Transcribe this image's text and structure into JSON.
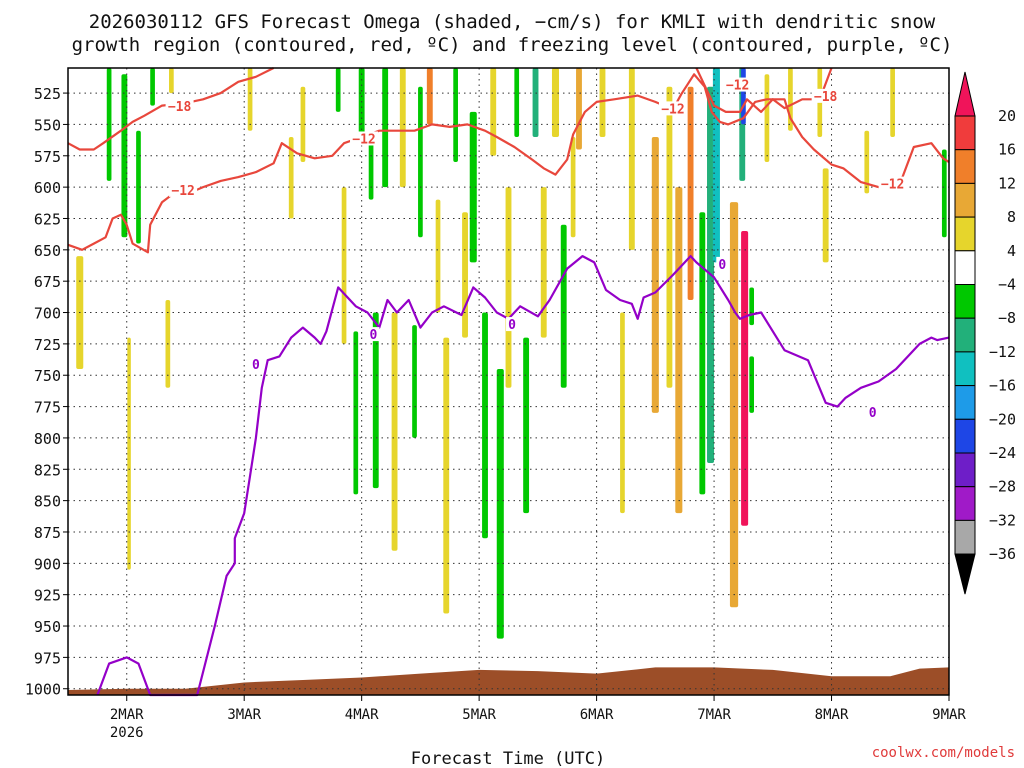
{
  "chart_data": {
    "type": "heatmap",
    "title": "2026030112 GFS Forecast Omega (shaded, −cm/s) for KMLI with dendritic snow growth region (contoured, red, ºC) and freezing level (contoured, purple, ºC)",
    "title_lines": [
      "2026030112 GFS Forecast Omega (shaded, −cm/s) for KMLI with dendritic snow",
      "growth region (contoured, red, ºC) and freezing level (contoured, purple, ºC)"
    ],
    "xlabel": "Forecast Time (UTC)",
    "ylabel": "",
    "credit": "coolwx.com/models",
    "x_ticks": [
      {
        "t": 0.5,
        "label": "2MAR",
        "sub": "2026"
      },
      {
        "t": 1.5,
        "label": "3MAR"
      },
      {
        "t": 2.5,
        "label": "4MAR"
      },
      {
        "t": 3.5,
        "label": "5MAR"
      },
      {
        "t": 4.5,
        "label": "6MAR"
      },
      {
        "t": 5.5,
        "label": "7MAR"
      },
      {
        "t": 6.5,
        "label": "8MAR"
      },
      {
        "t": 7.5,
        "label": "9MAR"
      }
    ],
    "xlim": [
      0,
      7.5
    ],
    "y_ticks": [
      525,
      550,
      575,
      600,
      625,
      650,
      675,
      700,
      725,
      750,
      775,
      800,
      825,
      850,
      875,
      900,
      925,
      950,
      975,
      1000
    ],
    "ylim": [
      505,
      1005
    ],
    "y_reversed": true,
    "grid": true,
    "colorbar": {
      "levels": [
        20,
        16,
        12,
        8,
        4,
        -4,
        -8,
        -12,
        -16,
        -20,
        -24,
        -28,
        -32,
        -36
      ],
      "colors": [
        "#f0145a",
        "#f03c3c",
        "#f07f2a",
        "#e8a835",
        "#e6d52c",
        "#ffffff",
        "#00c800",
        "#22b07a",
        "#10c0c0",
        "#1e9be8",
        "#1e46e6",
        "#6e1ec8",
        "#a01ac8",
        "#a8a8a8",
        "#000000"
      ],
      "top_color": "#f0145a",
      "bottom_color": "#000000"
    },
    "surface_fill_color": "#9c4e28",
    "dendritic_color": "#e8473c",
    "freezing_color": "#9400c8",
    "contour_labels": [
      {
        "t": 0.95,
        "p": 536,
        "text": "−18",
        "color": "#e8473c"
      },
      {
        "t": 0.98,
        "p": 603,
        "text": "−12",
        "color": "#e8473c"
      },
      {
        "t": 2.52,
        "p": 562,
        "text": "−12",
        "color": "#e8473c"
      },
      {
        "t": 5.15,
        "p": 538,
        "text": "−12",
        "color": "#e8473c"
      },
      {
        "t": 5.7,
        "p": 519,
        "text": "−12",
        "color": "#e8473c"
      },
      {
        "t": 6.45,
        "p": 528,
        "text": "−18",
        "color": "#e8473c"
      },
      {
        "t": 7.02,
        "p": 598,
        "text": "−12",
        "color": "#e8473c"
      },
      {
        "t": 1.6,
        "p": 742,
        "text": "0",
        "color": "#9400c8"
      },
      {
        "t": 2.6,
        "p": 718,
        "text": "0",
        "color": "#9400c8"
      },
      {
        "t": 3.78,
        "p": 710,
        "text": "0",
        "color": "#9400c8"
      },
      {
        "t": 5.57,
        "p": 662,
        "text": "0",
        "color": "#9400c8"
      },
      {
        "t": 6.85,
        "p": 780,
        "text": "0",
        "color": "#9400c8"
      }
    ],
    "freezing_level": [
      [
        0.25,
        1005
      ],
      [
        0.35,
        980
      ],
      [
        0.5,
        975
      ],
      [
        0.6,
        980
      ],
      [
        0.7,
        1005
      ],
      [
        1.1,
        1005
      ],
      [
        1.25,
        950
      ],
      [
        1.35,
        910
      ],
      [
        1.42,
        900
      ],
      [
        1.42,
        880
      ],
      [
        1.5,
        860
      ],
      [
        1.55,
        830
      ],
      [
        1.6,
        800
      ],
      [
        1.65,
        760
      ],
      [
        1.7,
        738
      ],
      [
        1.8,
        735
      ],
      [
        1.9,
        720
      ],
      [
        2.0,
        712
      ],
      [
        2.1,
        720
      ],
      [
        2.15,
        725
      ],
      [
        2.2,
        715
      ],
      [
        2.3,
        680
      ],
      [
        2.45,
        695
      ],
      [
        2.55,
        700
      ],
      [
        2.65,
        712
      ],
      [
        2.72,
        690
      ],
      [
        2.8,
        700
      ],
      [
        2.9,
        690
      ],
      [
        3.0,
        712
      ],
      [
        3.1,
        700
      ],
      [
        3.2,
        695
      ],
      [
        3.35,
        702
      ],
      [
        3.45,
        680
      ],
      [
        3.55,
        688
      ],
      [
        3.65,
        700
      ],
      [
        3.75,
        705
      ],
      [
        3.85,
        695
      ],
      [
        4.0,
        703
      ],
      [
        4.1,
        690
      ],
      [
        4.25,
        665
      ],
      [
        4.38,
        655
      ],
      [
        4.48,
        660
      ],
      [
        4.58,
        682
      ],
      [
        4.7,
        690
      ],
      [
        4.8,
        693
      ],
      [
        4.85,
        705
      ],
      [
        4.9,
        688
      ],
      [
        5.0,
        684
      ],
      [
        5.15,
        670
      ],
      [
        5.3,
        655
      ],
      [
        5.35,
        660
      ],
      [
        5.5,
        672
      ],
      [
        5.62,
        690
      ],
      [
        5.68,
        700
      ],
      [
        5.72,
        705
      ],
      [
        5.8,
        702
      ],
      [
        5.9,
        700
      ],
      [
        6.1,
        730
      ],
      [
        6.3,
        738
      ],
      [
        6.45,
        772
      ],
      [
        6.55,
        775
      ],
      [
        6.62,
        768
      ],
      [
        6.75,
        760
      ],
      [
        6.9,
        755
      ],
      [
        7.05,
        745
      ],
      [
        7.25,
        725
      ],
      [
        7.35,
        720
      ],
      [
        7.4,
        722
      ],
      [
        7.5,
        720
      ]
    ],
    "dendritic_lines": [
      [
        [
          0,
          646
        ],
        [
          0.12,
          650
        ],
        [
          0.22,
          645
        ],
        [
          0.32,
          640
        ],
        [
          0.38,
          625
        ],
        [
          0.45,
          622
        ],
        [
          0.5,
          630
        ],
        [
          0.55,
          645
        ],
        [
          0.68,
          652
        ],
        [
          0.7,
          630
        ],
        [
          0.8,
          612
        ],
        [
          0.9,
          605
        ],
        [
          1.05,
          604
        ],
        [
          1.15,
          600
        ],
        [
          1.3,
          595
        ],
        [
          1.45,
          592
        ],
        [
          1.6,
          588
        ],
        [
          1.75,
          581
        ],
        [
          1.82,
          565
        ],
        [
          1.95,
          573
        ],
        [
          2.1,
          577
        ],
        [
          2.25,
          575
        ],
        [
          2.35,
          565
        ],
        [
          2.5,
          560
        ],
        [
          2.65,
          555
        ],
        [
          2.8,
          555
        ],
        [
          2.95,
          555
        ],
        [
          3.1,
          550
        ],
        [
          3.25,
          552
        ],
        [
          3.4,
          550
        ],
        [
          3.55,
          555
        ],
        [
          3.65,
          560
        ],
        [
          3.8,
          568
        ],
        [
          3.95,
          578
        ],
        [
          4.05,
          585
        ],
        [
          4.15,
          590
        ],
        [
          4.25,
          578
        ],
        [
          4.3,
          558
        ],
        [
          4.4,
          540
        ],
        [
          4.5,
          532
        ],
        [
          4.65,
          530
        ],
        [
          4.85,
          527
        ],
        [
          5.0,
          532
        ],
        [
          5.15,
          538
        ],
        [
          5.22,
          526
        ],
        [
          5.33,
          510
        ],
        [
          5.42,
          520
        ],
        [
          5.48,
          540
        ],
        [
          5.55,
          548
        ],
        [
          5.62,
          550
        ],
        [
          5.75,
          545
        ],
        [
          5.85,
          532
        ],
        [
          5.95,
          530
        ],
        [
          6.1,
          530
        ],
        [
          6.15,
          545
        ],
        [
          6.25,
          560
        ],
        [
          6.35,
          570
        ],
        [
          6.5,
          582
        ],
        [
          6.6,
          585
        ],
        [
          6.75,
          596
        ],
        [
          6.9,
          600
        ],
        [
          7.0,
          600
        ],
        [
          7.1,
          593
        ],
        [
          7.2,
          568
        ],
        [
          7.35,
          565
        ],
        [
          7.45,
          577
        ],
        [
          7.5,
          580
        ]
      ],
      [
        [
          0,
          565
        ],
        [
          0.1,
          570
        ],
        [
          0.22,
          570
        ],
        [
          0.3,
          565
        ],
        [
          0.45,
          555
        ],
        [
          0.55,
          548
        ],
        [
          0.65,
          543
        ],
        [
          0.8,
          535
        ],
        [
          1.0,
          533
        ],
        [
          1.15,
          530
        ],
        [
          1.3,
          525
        ],
        [
          1.45,
          516
        ],
        [
          1.6,
          512
        ],
        [
          1.75,
          505
        ]
      ],
      [
        [
          5.35,
          505
        ],
        [
          5.5,
          535
        ],
        [
          5.6,
          540
        ],
        [
          5.72,
          540
        ],
        [
          5.78,
          530
        ],
        [
          5.9,
          540
        ],
        [
          6.0,
          530
        ],
        [
          6.1,
          537
        ],
        [
          6.25,
          530
        ],
        [
          6.4,
          530
        ],
        [
          6.5,
          505
        ]
      ]
    ],
    "surface": [
      [
        0,
        1001
      ],
      [
        0.5,
        1000
      ],
      [
        1.0,
        1000
      ],
      [
        1.5,
        995
      ],
      [
        2.0,
        993
      ],
      [
        2.5,
        991
      ],
      [
        3.0,
        988
      ],
      [
        3.5,
        985
      ],
      [
        4.0,
        986
      ],
      [
        4.5,
        988
      ],
      [
        5.0,
        983
      ],
      [
        5.5,
        983
      ],
      [
        6.0,
        985
      ],
      [
        6.5,
        990
      ],
      [
        7.0,
        990
      ],
      [
        7.25,
        984
      ],
      [
        7.5,
        983
      ]
    ],
    "omega_cells": [
      {
        "t": 0.1,
        "w": 0.06,
        "p1": 655,
        "p2": 745,
        "v": 4
      },
      {
        "t": 0.35,
        "w": 0.04,
        "p1": 505,
        "p2": 595,
        "v": -8
      },
      {
        "t": 0.48,
        "w": 0.05,
        "p1": 510,
        "p2": 640,
        "v": -8
      },
      {
        "t": 0.52,
        "w": 0.03,
        "p1": 720,
        "p2": 905,
        "v": 4
      },
      {
        "t": 0.6,
        "w": 0.04,
        "p1": 555,
        "p2": 645,
        "v": -8
      },
      {
        "t": 0.72,
        "w": 0.04,
        "p1": 505,
        "p2": 535,
        "v": -8
      },
      {
        "t": 0.85,
        "w": 0.04,
        "p1": 690,
        "p2": 760,
        "v": 4
      },
      {
        "t": 0.88,
        "w": 0.04,
        "p1": 505,
        "p2": 525,
        "v": 4
      },
      {
        "t": 1.55,
        "w": 0.04,
        "p1": 505,
        "p2": 555,
        "v": 4
      },
      {
        "t": 1.9,
        "w": 0.04,
        "p1": 560,
        "p2": 625,
        "v": 4
      },
      {
        "t": 2.0,
        "w": 0.04,
        "p1": 520,
        "p2": 580,
        "v": 4
      },
      {
        "t": 2.3,
        "w": 0.04,
        "p1": 505,
        "p2": 540,
        "v": -8
      },
      {
        "t": 2.35,
        "w": 0.04,
        "p1": 600,
        "p2": 725,
        "v": 4
      },
      {
        "t": 2.45,
        "w": 0.04,
        "p1": 715,
        "p2": 845,
        "v": -8
      },
      {
        "t": 2.5,
        "w": 0.05,
        "p1": 505,
        "p2": 560,
        "v": -8
      },
      {
        "t": 2.58,
        "w": 0.04,
        "p1": 560,
        "p2": 610,
        "v": -8
      },
      {
        "t": 2.62,
        "w": 0.05,
        "p1": 700,
        "p2": 840,
        "v": -8
      },
      {
        "t": 2.7,
        "w": 0.05,
        "p1": 505,
        "p2": 600,
        "v": -8
      },
      {
        "t": 2.78,
        "w": 0.05,
        "p1": 700,
        "p2": 890,
        "v": 4
      },
      {
        "t": 2.85,
        "w": 0.05,
        "p1": 505,
        "p2": 600,
        "v": 4
      },
      {
        "t": 2.95,
        "w": 0.04,
        "p1": 710,
        "p2": 800,
        "v": -8
      },
      {
        "t": 3.0,
        "w": 0.04,
        "p1": 520,
        "p2": 640,
        "v": -8
      },
      {
        "t": 3.08,
        "w": 0.05,
        "p1": 505,
        "p2": 550,
        "v": 12
      },
      {
        "t": 3.15,
        "w": 0.04,
        "p1": 610,
        "p2": 700,
        "v": 4
      },
      {
        "t": 3.22,
        "w": 0.05,
        "p1": 720,
        "p2": 940,
        "v": 4
      },
      {
        "t": 3.3,
        "w": 0.04,
        "p1": 505,
        "p2": 580,
        "v": -8
      },
      {
        "t": 3.38,
        "w": 0.05,
        "p1": 620,
        "p2": 720,
        "v": 4
      },
      {
        "t": 3.45,
        "w": 0.06,
        "p1": 540,
        "p2": 660,
        "v": -8
      },
      {
        "t": 3.55,
        "w": 0.05,
        "p1": 700,
        "p2": 880,
        "v": -8
      },
      {
        "t": 3.62,
        "w": 0.05,
        "p1": 505,
        "p2": 575,
        "v": 4
      },
      {
        "t": 3.68,
        "w": 0.06,
        "p1": 745,
        "p2": 960,
        "v": -8
      },
      {
        "t": 3.75,
        "w": 0.05,
        "p1": 600,
        "p2": 760,
        "v": 4
      },
      {
        "t": 3.82,
        "w": 0.04,
        "p1": 505,
        "p2": 560,
        "v": -8
      },
      {
        "t": 3.9,
        "w": 0.05,
        "p1": 720,
        "p2": 860,
        "v": -8
      },
      {
        "t": 3.98,
        "w": 0.05,
        "p1": 505,
        "p2": 560,
        "v": -12
      },
      {
        "t": 4.05,
        "w": 0.05,
        "p1": 600,
        "p2": 720,
        "v": 4
      },
      {
        "t": 4.15,
        "w": 0.06,
        "p1": 505,
        "p2": 560,
        "v": 4
      },
      {
        "t": 4.22,
        "w": 0.05,
        "p1": 630,
        "p2": 760,
        "v": -8
      },
      {
        "t": 4.3,
        "w": 0.04,
        "p1": 560,
        "p2": 640,
        "v": 4
      },
      {
        "t": 4.35,
        "w": 0.05,
        "p1": 505,
        "p2": 570,
        "v": 8
      },
      {
        "t": 4.55,
        "w": 0.05,
        "p1": 505,
        "p2": 560,
        "v": 4
      },
      {
        "t": 4.72,
        "w": 0.04,
        "p1": 700,
        "p2": 860,
        "v": 4
      },
      {
        "t": 4.8,
        "w": 0.05,
        "p1": 505,
        "p2": 650,
        "v": 4
      },
      {
        "t": 5.0,
        "w": 0.06,
        "p1": 560,
        "p2": 780,
        "v": 8
      },
      {
        "t": 5.12,
        "w": 0.05,
        "p1": 520,
        "p2": 760,
        "v": 4
      },
      {
        "t": 5.2,
        "w": 0.06,
        "p1": 600,
        "p2": 860,
        "v": 8
      },
      {
        "t": 5.3,
        "w": 0.05,
        "p1": 520,
        "p2": 690,
        "v": 12
      },
      {
        "t": 5.4,
        "w": 0.05,
        "p1": 620,
        "p2": 845,
        "v": -8
      },
      {
        "t": 5.47,
        "w": 0.06,
        "p1": 520,
        "p2": 820,
        "v": -12
      },
      {
        "t": 5.52,
        "w": 0.06,
        "p1": 505,
        "p2": 660,
        "v": -16
      },
      {
        "t": 5.67,
        "w": 0.07,
        "p1": 612,
        "p2": 935,
        "v": 8
      },
      {
        "t": 5.74,
        "w": 0.05,
        "p1": 505,
        "p2": 595,
        "v": -12
      },
      {
        "t": 5.76,
        "w": 0.06,
        "p1": 635,
        "p2": 870,
        "v": 20
      },
      {
        "t": 5.75,
        "w": 0.04,
        "p1": 505,
        "p2": 550,
        "v": -24
      },
      {
        "t": 5.82,
        "w": 0.04,
        "p1": 680,
        "p2": 710,
        "v": -8
      },
      {
        "t": 5.82,
        "w": 0.04,
        "p1": 735,
        "p2": 780,
        "v": -8
      },
      {
        "t": 5.95,
        "w": 0.04,
        "p1": 510,
        "p2": 580,
        "v": 4
      },
      {
        "t": 6.15,
        "w": 0.04,
        "p1": 505,
        "p2": 555,
        "v": 4
      },
      {
        "t": 6.4,
        "w": 0.04,
        "p1": 505,
        "p2": 560,
        "v": 4
      },
      {
        "t": 6.45,
        "w": 0.05,
        "p1": 585,
        "p2": 660,
        "v": 4
      },
      {
        "t": 6.8,
        "w": 0.04,
        "p1": 555,
        "p2": 605,
        "v": 4
      },
      {
        "t": 7.02,
        "w": 0.04,
        "p1": 505,
        "p2": 560,
        "v": 4
      },
      {
        "t": 7.46,
        "w": 0.04,
        "p1": 570,
        "p2": 640,
        "v": -8
      }
    ]
  }
}
